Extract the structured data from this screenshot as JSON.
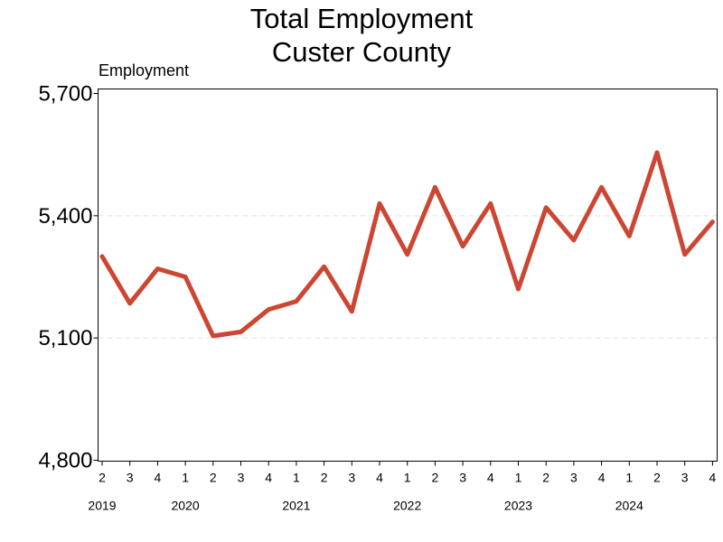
{
  "chart_data": {
    "type": "line",
    "title": "Total Employment",
    "subtitle": "Custer County",
    "ylabel": "Employment",
    "xlabel": "",
    "ylim": [
      4800,
      5700
    ],
    "yticks": [
      "4,800",
      "5,100",
      "5,400",
      "5,700"
    ],
    "grid": true,
    "quarters": [
      "2",
      "3",
      "4",
      "1",
      "2",
      "3",
      "4",
      "1",
      "2",
      "3",
      "4",
      "1",
      "2",
      "3",
      "4",
      "1",
      "2",
      "3",
      "4",
      "1",
      "2",
      "3",
      "4"
    ],
    "years": [
      {
        "label": "2019",
        "first_index": 0
      },
      {
        "label": "2020",
        "first_index": 3
      },
      {
        "label": "2021",
        "first_index": 7
      },
      {
        "label": "2022",
        "first_index": 11
      },
      {
        "label": "2023",
        "first_index": 15
      },
      {
        "label": "2024",
        "first_index": 19
      }
    ],
    "series": [
      {
        "color": "#cc4633",
        "values": [
          5300,
          5185,
          5270,
          5250,
          5105,
          5115,
          5170,
          5190,
          5275,
          5165,
          5430,
          5305,
          5470,
          5325,
          5430,
          5220,
          5420,
          5340,
          5470,
          5350,
          5555,
          5305,
          5385
        ]
      }
    ]
  }
}
